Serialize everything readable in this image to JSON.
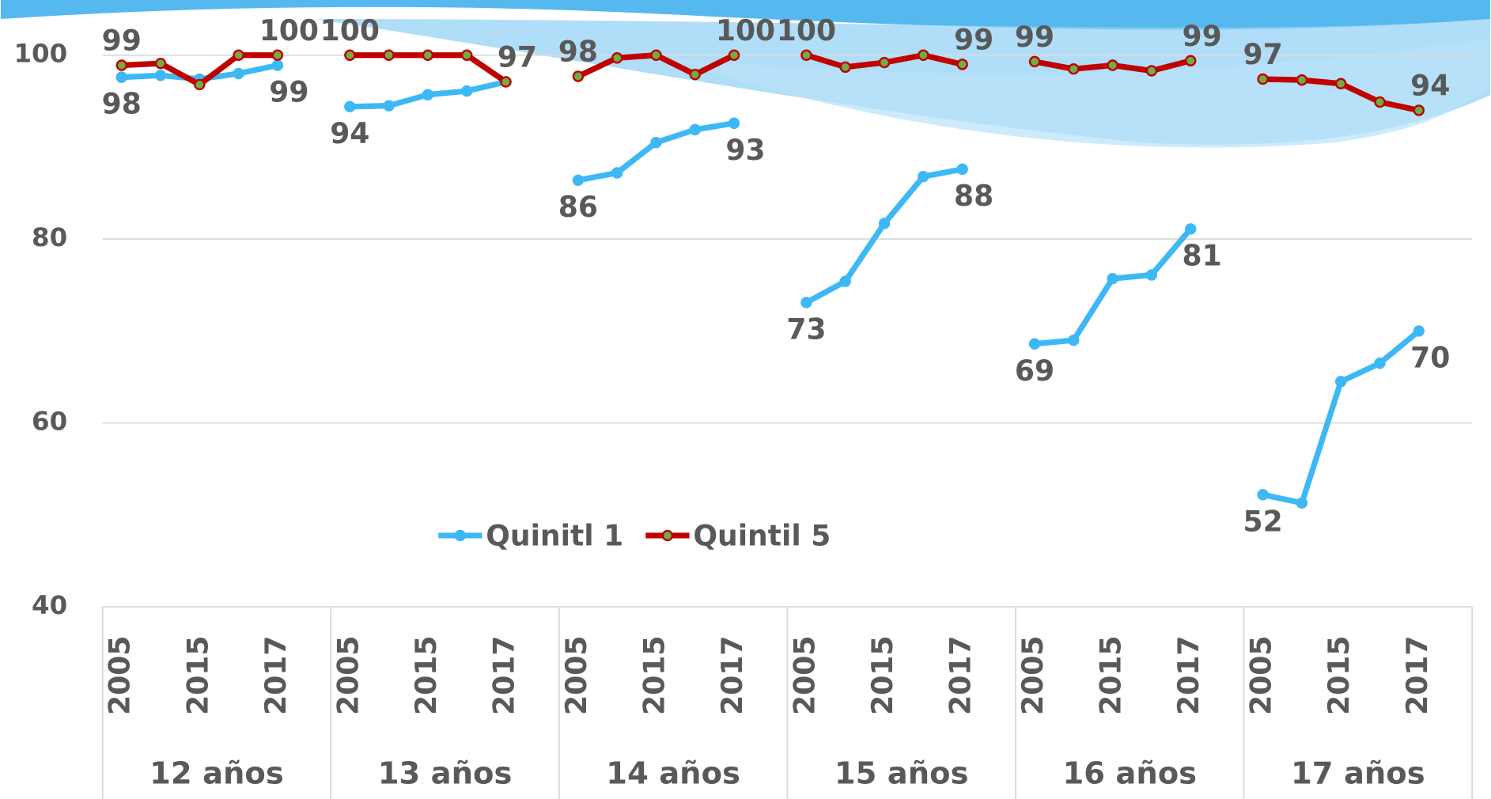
{
  "chart_data": {
    "type": "line",
    "groups": [
      "12 años",
      "13 años",
      "14 años",
      "15 años",
      "16 años",
      "17 años"
    ],
    "categories": [
      "2005",
      null,
      "2015",
      null,
      "2017",
      "2005",
      null,
      "2015",
      null,
      "2017",
      "2005",
      null,
      "2015",
      null,
      "2017",
      "2005",
      null,
      "2015",
      null,
      "2017",
      "2005",
      null,
      "2015",
      null,
      "2017",
      "2005",
      null,
      "2015",
      null,
      "2017"
    ],
    "series": [
      {
        "name": "Quinitl 1",
        "color": "#3db8f5",
        "values": [
          97.6,
          97.8,
          97.4,
          98.0,
          98.9,
          94.4,
          94.5,
          95.7,
          96.1,
          97.1,
          86.4,
          87.2,
          90.5,
          91.9,
          92.6,
          73.1,
          75.4,
          81.7,
          86.8,
          87.6,
          68.6,
          69.0,
          75.7,
          76.1,
          81.1,
          52.2,
          51.3,
          64.5,
          66.5,
          70.0
        ],
        "value_labels": [
          "98",
          null,
          null,
          null,
          "99",
          "94",
          null,
          null,
          null,
          null,
          "86",
          null,
          null,
          null,
          "93",
          "73",
          null,
          null,
          null,
          "88",
          "69",
          null,
          null,
          null,
          "81",
          "52",
          null,
          null,
          null,
          "70"
        ]
      },
      {
        "name": "Quintil 5",
        "color": "#c00000",
        "values": [
          98.9,
          99.1,
          96.8,
          100,
          100,
          100,
          100,
          100,
          100,
          97.1,
          97.7,
          99.7,
          100,
          97.9,
          100,
          100,
          98.7,
          99.2,
          100,
          99.0,
          99.3,
          98.5,
          98.9,
          98.3,
          99.4,
          97.4,
          97.3,
          96.9,
          94.9,
          94.0
        ],
        "value_labels": [
          "99",
          null,
          null,
          null,
          "100",
          "100",
          null,
          null,
          null,
          "97",
          "98",
          null,
          null,
          null,
          "100",
          "100",
          null,
          null,
          null,
          "99",
          "99",
          null,
          null,
          null,
          "99",
          "97",
          null,
          null,
          null,
          "94"
        ]
      }
    ],
    "ylim": [
      40,
      106
    ],
    "yticks": [
      40,
      60,
      80,
      100
    ],
    "grid": true
  }
}
